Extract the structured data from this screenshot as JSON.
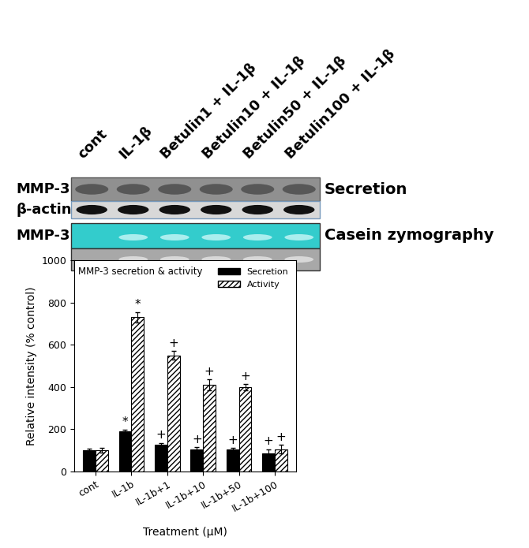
{
  "blot": {
    "columns": [
      "cont",
      "IL-1β",
      "Betulin1 + IL-1β",
      "Betulin10 + IL-1β",
      "Betulin50 + IL-1β",
      "Betulin100 + IL-1β"
    ],
    "rows": [
      {
        "label": "MMP-3",
        "right_label": "Secretion"
      },
      {
        "label": "β-actin"
      },
      {
        "label": "MMP-3",
        "right_label": "Casein zymography"
      }
    ]
  },
  "chart_data": {
    "type": "bar",
    "title": "MMP-3 secretion & activity",
    "categories": [
      "cont",
      "IL-1b",
      "IL-1b+1",
      "IL-1b+10",
      "IL-1b+50",
      "IL-1b+100"
    ],
    "series": [
      {
        "name": "Secretion",
        "color": "#000000",
        "values": [
          100,
          190,
          125,
          105,
          105,
          85
        ],
        "errors": [
          8,
          8,
          10,
          8,
          6,
          20
        ],
        "annotations": [
          null,
          "*",
          "+",
          "+",
          "+",
          "+"
        ]
      },
      {
        "name": "Activity",
        "color": "#ffffff",
        "values": [
          100,
          730,
          550,
          410,
          400,
          105
        ],
        "errors": [
          10,
          25,
          20,
          25,
          15,
          20
        ],
        "annotations": [
          null,
          "*",
          "+",
          "+",
          "+",
          "+"
        ]
      }
    ],
    "x_label": "Treatment (μM)",
    "y_label": "Relative intensity (% control)",
    "ylim": [
      0,
      1000
    ],
    "yticks": [
      0,
      200,
      400,
      600,
      800,
      1000
    ],
    "legend": "upper right",
    "grid": false
  }
}
